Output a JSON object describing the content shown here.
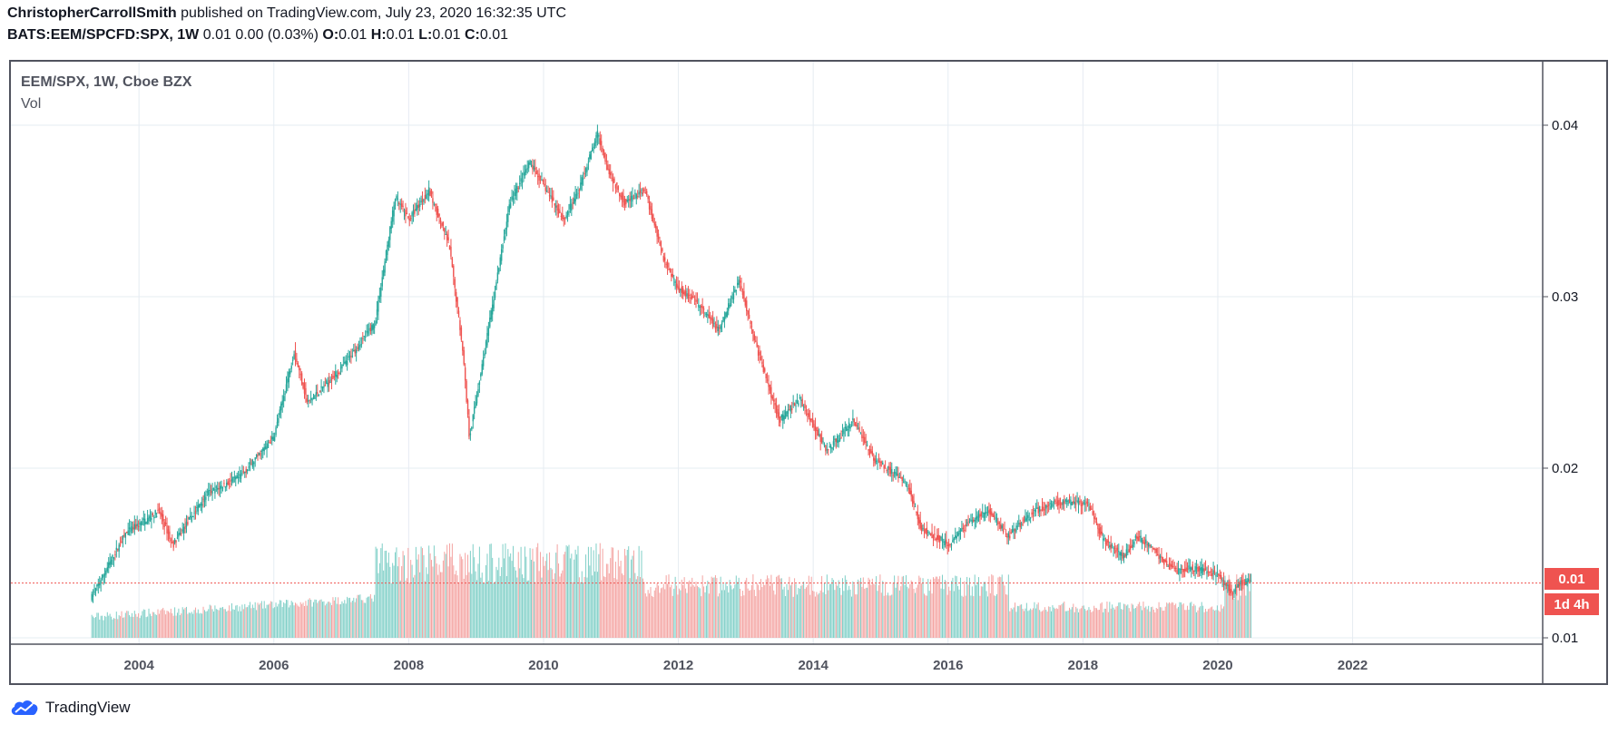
{
  "header": {
    "author": "ChristopherCarrollSmith",
    "published": "published on TradingView.com, July 23, 2020 16:32:35 UTC",
    "symbol": "BATS:EEM/SPCFD:SPX, 1W",
    "change": "0.01 0.00 (0.03%)",
    "o_label": "O:",
    "o_val": "0.01",
    "h_label": "H:",
    "h_val": "0.01",
    "l_label": "L:",
    "l_val": "0.01",
    "c_label": "C:",
    "c_val": "0.01"
  },
  "legend": {
    "title": "EEM/SPX, 1W, Cboe BZX",
    "vol": "Vol"
  },
  "price_tag": {
    "value": "0.01",
    "countdown": "1d 4h"
  },
  "brand": {
    "name": "TradingView"
  },
  "colors": {
    "up": "#26a69a",
    "down": "#ef5350",
    "up_vol": "#7fcfc7",
    "down_vol": "#f4a3a1",
    "grid": "#e6ecf2",
    "accent": "#2962ff"
  },
  "chart_data": {
    "type": "candlestick",
    "title": "EEM/SPX, 1W, Cboe BZX",
    "x_ticks": [
      "2004",
      "2006",
      "2008",
      "2010",
      "2012",
      "2014",
      "2016",
      "2018",
      "2020",
      "2022"
    ],
    "y_ticks": [
      "0.04",
      "0.03",
      "0.02",
      "0.01"
    ],
    "ylim": [
      0.0099,
      0.0403
    ],
    "xlim": [
      2002.1,
      2022.5
    ],
    "last_value": 0.01,
    "price_line": 0.0133,
    "series": [
      {
        "name": "EEM/SPX",
        "x": [
          2003.3,
          2003.8,
          2004.3,
          2004.5,
          2005.0,
          2005.5,
          2006.0,
          2006.3,
          2006.5,
          2007.0,
          2007.5,
          2007.8,
          2008.0,
          2008.3,
          2008.6,
          2008.8,
          2008.9,
          2009.2,
          2009.5,
          2009.8,
          2010.0,
          2010.3,
          2010.5,
          2010.8,
          2011.0,
          2011.2,
          2011.5,
          2011.8,
          2012.0,
          2012.3,
          2012.6,
          2012.9,
          2013.2,
          2013.5,
          2013.8,
          2014.2,
          2014.6,
          2014.9,
          2015.1,
          2015.4,
          2015.6,
          2015.9,
          2016.0,
          2016.3,
          2016.6,
          2016.9,
          2017.0,
          2017.3,
          2017.6,
          2017.9,
          2018.1,
          2018.3,
          2018.6,
          2018.8,
          2019.0,
          2019.2,
          2019.4,
          2019.6,
          2019.8,
          2020.0,
          2020.2,
          2020.35,
          2020.5
        ],
        "y": [
          0.0125,
          0.0162,
          0.0175,
          0.0155,
          0.0185,
          0.0195,
          0.0218,
          0.0268,
          0.0238,
          0.0258,
          0.0285,
          0.0358,
          0.0345,
          0.0362,
          0.033,
          0.027,
          0.0218,
          0.0285,
          0.0355,
          0.0378,
          0.0365,
          0.0345,
          0.036,
          0.0395,
          0.037,
          0.0355,
          0.0362,
          0.032,
          0.0305,
          0.0295,
          0.028,
          0.031,
          0.0265,
          0.0228,
          0.024,
          0.021,
          0.0228,
          0.0205,
          0.02,
          0.019,
          0.0165,
          0.0158,
          0.0155,
          0.0168,
          0.0175,
          0.016,
          0.0165,
          0.0175,
          0.018,
          0.018,
          0.0178,
          0.0158,
          0.0148,
          0.016,
          0.0155,
          0.0145,
          0.014,
          0.0142,
          0.014,
          0.0138,
          0.0128,
          0.0133,
          0.0134
        ]
      }
    ]
  }
}
